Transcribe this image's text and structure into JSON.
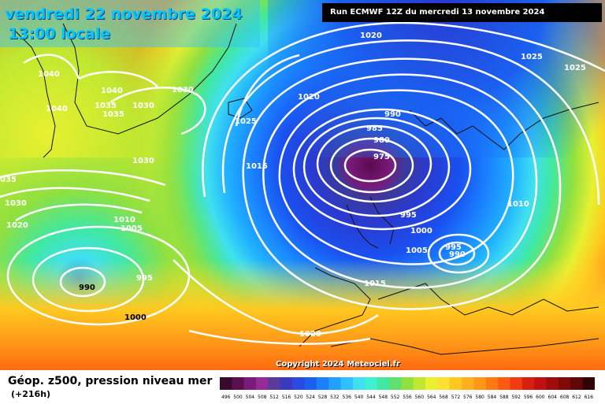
{
  "header": {
    "date": "vendredi 22 novembre 2024",
    "time": "13:00 locale",
    "run": "Run ECMWF 12Z du mercredi 13 novembre 2024"
  },
  "copyright": "Copyright 2024 Meteociel.fr",
  "footer": {
    "parameter": "Géop. z500, pression niveau mer",
    "lead_time": "(+216h)"
  },
  "legend": {
    "ticks": [
      "496",
      "500",
      "504",
      "508",
      "512",
      "516",
      "520",
      "524",
      "528",
      "532",
      "536",
      "540",
      "544",
      "548",
      "552",
      "556",
      "560",
      "564",
      "568",
      "572",
      "576",
      "580",
      "584",
      "588",
      "592",
      "596",
      "600",
      "604",
      "608",
      "612",
      "616"
    ],
    "colors": [
      "#3a0a2a",
      "#5c0f4f",
      "#7a1a7a",
      "#962a96",
      "#5a3a9a",
      "#3a3ac0",
      "#2a4ae0",
      "#1a60f0",
      "#1a80ff",
      "#20a0ff",
      "#30c0ff",
      "#40e0f0",
      "#40f0d0",
      "#40e8a0",
      "#60e070",
      "#90e040",
      "#c0e830",
      "#e8f030",
      "#ffe030",
      "#ffc820",
      "#ffb020",
      "#ff9818",
      "#ff7a10",
      "#ff5a10",
      "#f03a10",
      "#d82010",
      "#c01010",
      "#a00c0c",
      "#800a0a",
      "#600808",
      "#300404"
    ]
  },
  "isobar_labels": [
    {
      "text": "1040"
    },
    {
      "text": "1040"
    },
    {
      "text": "1040"
    },
    {
      "text": "1035"
    },
    {
      "text": "1035"
    },
    {
      "text": "1030"
    },
    {
      "text": "1030"
    },
    {
      "text": "1030"
    },
    {
      "text": "035"
    },
    {
      "text": "1030"
    },
    {
      "text": "1020"
    },
    {
      "text": "1010"
    },
    {
      "text": "1005"
    },
    {
      "text": "990"
    },
    {
      "text": "995"
    },
    {
      "text": "1000"
    },
    {
      "text": "1025"
    },
    {
      "text": "1015"
    },
    {
      "text": "1020"
    },
    {
      "text": "1020"
    },
    {
      "text": "990"
    },
    {
      "text": "985"
    },
    {
      "text": "980"
    },
    {
      "text": "975"
    },
    {
      "text": "995"
    },
    {
      "text": "1000"
    },
    {
      "text": "1005"
    },
    {
      "text": "995"
    },
    {
      "text": "990"
    },
    {
      "text": "1010"
    },
    {
      "text": "1015"
    },
    {
      "text": "1020"
    },
    {
      "text": "1025"
    },
    {
      "text": "1025"
    }
  ]
}
